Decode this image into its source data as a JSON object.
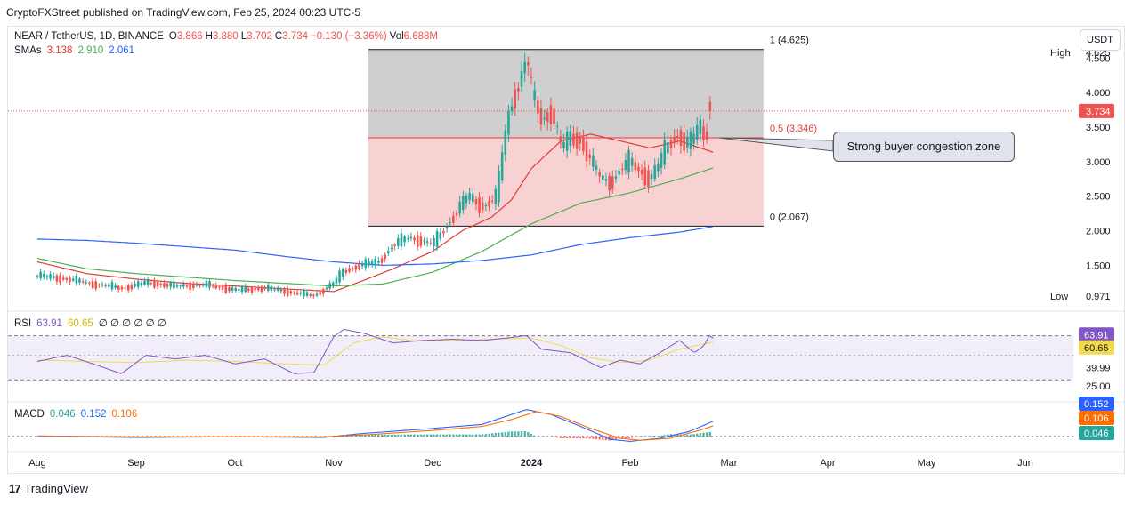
{
  "header": {
    "text": "CryptoFXStreet published on TradingView.com, Feb 25, 2024 00:23 UTC-5"
  },
  "footer": {
    "brand": "TradingView",
    "logo_glyph": "17"
  },
  "currency_button": "USDT",
  "colors": {
    "up": "#26a69a",
    "down": "#ef5350",
    "sma1": "#e53935",
    "sma2": "#4caf50",
    "sma3": "#2962ff",
    "rsi": "#7e57c2",
    "rsi_ma": "#f2d94e",
    "macd": "#2962ff",
    "signal": "#ff6d00"
  },
  "main_legend": {
    "symbol": "NEAR / TetherUS, 1D, BINANCE",
    "open_label": "O",
    "open": "3.866",
    "high_label": "H",
    "high": "3.880",
    "low_label": "L",
    "low": "3.702",
    "close_label": "C",
    "close": "3.734",
    "change": "−0.130 (−3.36%)",
    "vol_label": "Vol",
    "vol": "6.688M",
    "sma_label": "SMAs",
    "sma_values": [
      "3.138",
      "2.910",
      "2.061"
    ]
  },
  "rsi_legend": {
    "label": "RSI",
    "values": [
      "63.91",
      "60.65"
    ],
    "extra": "∅ ∅ ∅ ∅ ∅ ∅"
  },
  "macd_legend": {
    "label": "MACD",
    "values": [
      "0.046",
      "0.152",
      "0.106"
    ]
  },
  "annotation": "Strong buyer congestion zone",
  "chart_data": [
    {
      "type": "candlestick",
      "pane": "price",
      "title": "NEAR / TetherUS, 1D, BINANCE",
      "ylim": [
        0.9,
        4.75
      ],
      "y_ticks": [
        "1.500",
        "2.000",
        "2.500",
        "3.000",
        "3.500",
        "4.000",
        "4.500"
      ],
      "x_ticks": [
        "Aug",
        "Sep",
        "Oct",
        "Nov",
        "Dec",
        "2024",
        "Feb",
        "Mar",
        "Apr",
        "May",
        "Jun"
      ],
      "x_tick_months": [
        0,
        1,
        2,
        3,
        4,
        5,
        6,
        7,
        8,
        9,
        10
      ],
      "last_price": {
        "label": "3.734",
        "value": 3.734
      },
      "high_marker": {
        "label": "High",
        "value_label": "4.625",
        "value": 4.625
      },
      "low_marker": {
        "label": "Low",
        "value_label": "0.971",
        "value": 0.971
      },
      "fib": {
        "levels": [
          {
            "label": "1 (4.625)",
            "value": 4.625
          },
          {
            "label": "0.5 (3.346)",
            "value": 3.346
          },
          {
            "label": "0 (2.067)",
            "value": 2.067
          }
        ],
        "start_month": 3.35,
        "end_month": 7.35
      },
      "price_anchors": [
        [
          0,
          1.35
        ],
        [
          0.3,
          1.3
        ],
        [
          0.6,
          1.22
        ],
        [
          0.85,
          1.17
        ],
        [
          1.1,
          1.25
        ],
        [
          1.4,
          1.2
        ],
        [
          1.7,
          1.22
        ],
        [
          2.0,
          1.14
        ],
        [
          2.3,
          1.17
        ],
        [
          2.6,
          1.1
        ],
        [
          2.8,
          1.06
        ],
        [
          3.0,
          1.25
        ],
        [
          3.1,
          1.42
        ],
        [
          3.25,
          1.5
        ],
        [
          3.45,
          1.55
        ],
        [
          3.6,
          1.8
        ],
        [
          3.75,
          1.9
        ],
        [
          3.9,
          1.85
        ],
        [
          4.0,
          1.8
        ],
        [
          4.2,
          2.2
        ],
        [
          4.35,
          2.5
        ],
        [
          4.5,
          2.35
        ],
        [
          4.65,
          2.5
        ],
        [
          4.72,
          3.3
        ],
        [
          4.8,
          3.9
        ],
        [
          4.88,
          4.15
        ],
        [
          4.95,
          4.55
        ],
        [
          5.0,
          4.0
        ],
        [
          5.1,
          3.6
        ],
        [
          5.2,
          3.75
        ],
        [
          5.3,
          3.2
        ],
        [
          5.4,
          3.35
        ],
        [
          5.5,
          3.3
        ],
        [
          5.6,
          3.0
        ],
        [
          5.7,
          2.75
        ],
        [
          5.8,
          2.7
        ],
        [
          5.9,
          2.9
        ],
        [
          6.0,
          3.0
        ],
        [
          6.1,
          2.85
        ],
        [
          6.2,
          2.75
        ],
        [
          6.3,
          3.0
        ],
        [
          6.4,
          3.3
        ],
        [
          6.5,
          3.4
        ],
        [
          6.55,
          3.25
        ],
        [
          6.63,
          3.3
        ],
        [
          6.7,
          3.55
        ],
        [
          6.75,
          3.3
        ],
        [
          6.8,
          3.7
        ],
        [
          6.84,
          3.734
        ]
      ],
      "sma_series": [
        {
          "name": "3.138",
          "points": [
            [
              0,
              1.55
            ],
            [
              0.5,
              1.38
            ],
            [
              1.0,
              1.3
            ],
            [
              1.5,
              1.24
            ],
            [
              2.0,
              1.2
            ],
            [
              2.5,
              1.16
            ],
            [
              3.0,
              1.12
            ],
            [
              3.3,
              1.28
            ],
            [
              3.6,
              1.45
            ],
            [
              4.0,
              1.7
            ],
            [
              4.3,
              2.0
            ],
            [
              4.6,
              2.2
            ],
            [
              4.8,
              2.45
            ],
            [
              5.0,
              2.9
            ],
            [
              5.3,
              3.3
            ],
            [
              5.6,
              3.4
            ],
            [
              5.9,
              3.3
            ],
            [
              6.2,
              3.2
            ],
            [
              6.5,
              3.3
            ],
            [
              6.84,
              3.138
            ]
          ]
        },
        {
          "name": "2.910",
          "points": [
            [
              0,
              1.6
            ],
            [
              0.5,
              1.45
            ],
            [
              1.0,
              1.38
            ],
            [
              1.5,
              1.33
            ],
            [
              2.0,
              1.28
            ],
            [
              2.5,
              1.24
            ],
            [
              3.0,
              1.2
            ],
            [
              3.5,
              1.23
            ],
            [
              4.0,
              1.4
            ],
            [
              4.5,
              1.7
            ],
            [
              5.0,
              2.1
            ],
            [
              5.5,
              2.4
            ],
            [
              6.0,
              2.55
            ],
            [
              6.5,
              2.75
            ],
            [
              6.84,
              2.91
            ]
          ]
        },
        {
          "name": "2.061",
          "points": [
            [
              0,
              1.88
            ],
            [
              0.5,
              1.86
            ],
            [
              1.0,
              1.82
            ],
            [
              1.5,
              1.77
            ],
            [
              2.0,
              1.72
            ],
            [
              2.5,
              1.63
            ],
            [
              3.0,
              1.55
            ],
            [
              3.5,
              1.5
            ],
            [
              4.0,
              1.52
            ],
            [
              4.5,
              1.57
            ],
            [
              5.0,
              1.65
            ],
            [
              5.5,
              1.8
            ],
            [
              6.0,
              1.9
            ],
            [
              6.5,
              1.98
            ],
            [
              6.84,
              2.061
            ]
          ]
        }
      ]
    },
    {
      "type": "line",
      "pane": "rsi",
      "title": "RSI",
      "ylim": [
        15,
        80
      ],
      "y_ticks": [
        "65.82",
        "39.99",
        "25.00"
      ],
      "band": [
        30,
        65.82
      ],
      "last_values": [
        {
          "label": "63.91",
          "value": 63.91
        },
        {
          "label": "60.65",
          "value": 60.65
        }
      ],
      "series": [
        {
          "name": "63.91",
          "points": [
            [
              0,
              45
            ],
            [
              0.3,
              50
            ],
            [
              0.6,
              42
            ],
            [
              0.85,
              35
            ],
            [
              1.1,
              50
            ],
            [
              1.4,
              47
            ],
            [
              1.7,
              50
            ],
            [
              2.0,
              43
            ],
            [
              2.3,
              47
            ],
            [
              2.6,
              35
            ],
            [
              2.8,
              36
            ],
            [
              3.0,
              65
            ],
            [
              3.1,
              71
            ],
            [
              3.3,
              68
            ],
            [
              3.6,
              60
            ],
            [
              3.9,
              62
            ],
            [
              4.2,
              63
            ],
            [
              4.5,
              62
            ],
            [
              4.75,
              64
            ],
            [
              4.95,
              66
            ],
            [
              5.1,
              55
            ],
            [
              5.4,
              52
            ],
            [
              5.7,
              40
            ],
            [
              5.9,
              46
            ],
            [
              6.1,
              43
            ],
            [
              6.3,
              52
            ],
            [
              6.5,
              62
            ],
            [
              6.65,
              52
            ],
            [
              6.75,
              58
            ],
            [
              6.8,
              66
            ],
            [
              6.84,
              63.91
            ]
          ]
        },
        {
          "name": "60.65",
          "points": [
            [
              0,
              46
            ],
            [
              0.5,
              45
            ],
            [
              1.0,
              44
            ],
            [
              1.5,
              46
            ],
            [
              2.0,
              45
            ],
            [
              2.5,
              43
            ],
            [
              2.9,
              42
            ],
            [
              3.2,
              60
            ],
            [
              3.5,
              65
            ],
            [
              3.8,
              62
            ],
            [
              4.2,
              62
            ],
            [
              4.6,
              63
            ],
            [
              5.0,
              64
            ],
            [
              5.3,
              58
            ],
            [
              5.6,
              48
            ],
            [
              5.9,
              44
            ],
            [
              6.2,
              46
            ],
            [
              6.5,
              55
            ],
            [
              6.84,
              60.65
            ]
          ]
        }
      ]
    },
    {
      "type": "bar-line",
      "pane": "macd",
      "title": "MACD",
      "ylim": [
        -0.1,
        0.32
      ],
      "last_values": [
        {
          "label": "0.152",
          "value": 0.152
        },
        {
          "label": "0.106",
          "value": 0.106
        },
        {
          "label": "0.046",
          "value": 0.046
        }
      ],
      "series": [
        {
          "name": "0.152",
          "points": [
            [
              0,
              0.0
            ],
            [
              1.0,
              -0.01
            ],
            [
              2.0,
              -0.005
            ],
            [
              2.9,
              -0.01
            ],
            [
              3.3,
              0.03
            ],
            [
              4.0,
              0.08
            ],
            [
              4.5,
              0.12
            ],
            [
              4.8,
              0.22
            ],
            [
              4.95,
              0.27
            ],
            [
              5.2,
              0.22
            ],
            [
              5.5,
              0.1
            ],
            [
              5.8,
              -0.03
            ],
            [
              6.0,
              -0.05
            ],
            [
              6.3,
              -0.02
            ],
            [
              6.6,
              0.05
            ],
            [
              6.84,
              0.152
            ]
          ]
        },
        {
          "name": "0.106",
          "points": [
            [
              0,
              0.005
            ],
            [
              1.0,
              -0.005
            ],
            [
              2.0,
              -0.005
            ],
            [
              2.9,
              -0.005
            ],
            [
              3.4,
              0.02
            ],
            [
              4.0,
              0.06
            ],
            [
              4.5,
              0.1
            ],
            [
              4.8,
              0.17
            ],
            [
              5.05,
              0.25
            ],
            [
              5.3,
              0.2
            ],
            [
              5.6,
              0.08
            ],
            [
              5.9,
              -0.02
            ],
            [
              6.1,
              -0.04
            ],
            [
              6.4,
              -0.02
            ],
            [
              6.7,
              0.06
            ],
            [
              6.84,
              0.106
            ]
          ]
        }
      ]
    }
  ]
}
